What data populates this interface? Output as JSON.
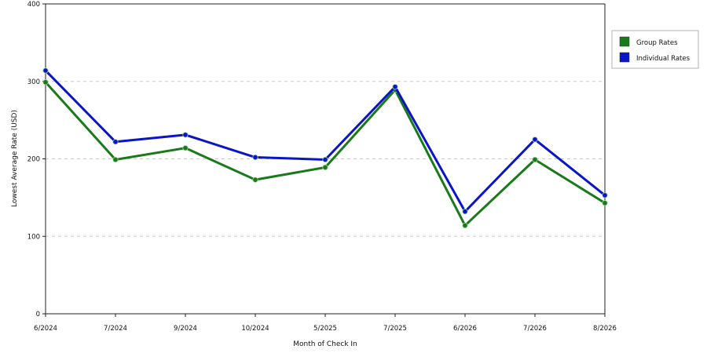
{
  "chart_data": {
    "type": "line",
    "title": "",
    "xlabel": "Month of Check In",
    "ylabel": "Lowest Average Rate (USD)",
    "ylim": [
      0,
      400
    ],
    "yticks": [
      0,
      100,
      200,
      300,
      400
    ],
    "grid": "horizontal-dashed",
    "legend_position": "right",
    "categories": [
      "6/2024",
      "7/2024",
      "9/2024",
      "10/2024",
      "5/2025",
      "7/2025",
      "6/2026",
      "7/2026",
      "8/2026"
    ],
    "series": [
      {
        "name": "Group Rates",
        "color": "#1a7a1a",
        "values": [
          299,
          199,
          214,
          173,
          189,
          289,
          114,
          199,
          143
        ]
      },
      {
        "name": "Individual Rates",
        "color": "#0a14c8",
        "values": [
          314,
          222,
          231,
          202,
          199,
          293,
          132,
          225,
          153
        ]
      }
    ]
  }
}
